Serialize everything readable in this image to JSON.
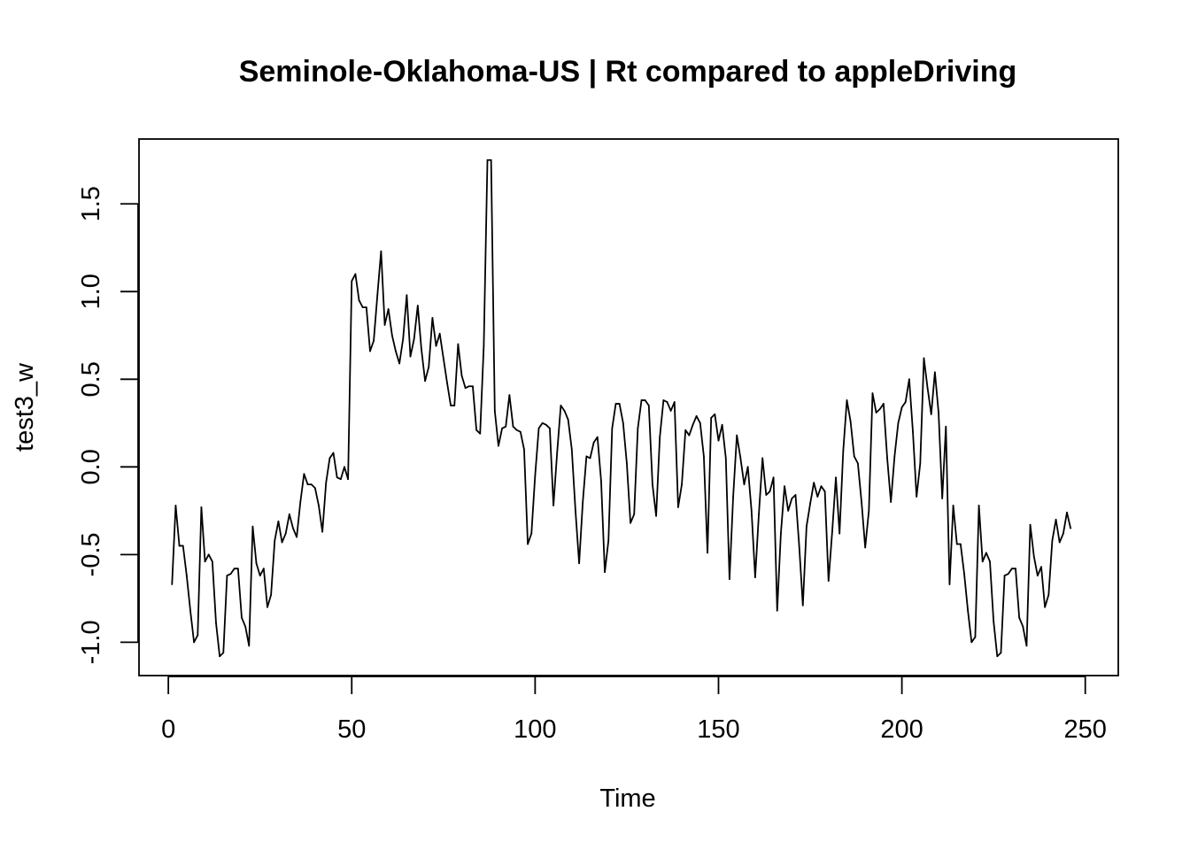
{
  "chart_data": {
    "type": "line",
    "title": "Seminole-Oklahoma-US | Rt compared to appleDriving",
    "xlabel": "Time",
    "ylabel": "test3_w",
    "xlim": [
      -8,
      259
    ],
    "ylim": [
      -1.19,
      1.87
    ],
    "x_ticks": [
      0,
      50,
      100,
      150,
      200,
      250
    ],
    "x_tick_labels": [
      "0",
      "50",
      "100",
      "150",
      "200",
      "250"
    ],
    "y_ticks": [
      -1.0,
      -0.5,
      0.0,
      0.5,
      1.0,
      1.5
    ],
    "y_tick_labels": [
      "-1.0",
      "-0.5",
      "0.0",
      "0.5",
      "1.0",
      "1.5"
    ],
    "grid": false,
    "line_color": "#000000",
    "series": [
      {
        "name": "test3_w",
        "x_start": 1,
        "values": [
          -0.67,
          -0.22,
          -0.45,
          -0.45,
          -0.62,
          -0.82,
          -1.0,
          -0.96,
          -0.23,
          -0.54,
          -0.5,
          -0.54,
          -0.89,
          -1.08,
          -1.06,
          -0.62,
          -0.61,
          -0.58,
          -0.58,
          -0.86,
          -0.91,
          -1.02,
          -0.34,
          -0.55,
          -0.62,
          -0.58,
          -0.8,
          -0.73,
          -0.42,
          -0.31,
          -0.43,
          -0.38,
          -0.27,
          -0.35,
          -0.4,
          -0.2,
          -0.04,
          -0.1,
          -0.1,
          -0.12,
          -0.22,
          -0.37,
          -0.09,
          0.05,
          0.08,
          -0.06,
          -0.07,
          0.0,
          -0.07,
          1.06,
          1.1,
          0.95,
          0.91,
          0.91,
          0.66,
          0.72,
          0.98,
          1.23,
          0.81,
          0.9,
          0.75,
          0.66,
          0.59,
          0.73,
          0.98,
          0.63,
          0.73,
          0.92,
          0.67,
          0.49,
          0.57,
          0.85,
          0.69,
          0.76,
          0.62,
          0.48,
          0.35,
          0.35,
          0.7,
          0.52,
          0.45,
          0.46,
          0.46,
          0.21,
          0.19,
          0.69,
          1.75,
          1.75,
          0.32,
          0.12,
          0.22,
          0.23,
          0.41,
          0.23,
          0.21,
          0.2,
          0.1,
          -0.44,
          -0.38,
          -0.05,
          0.22,
          0.25,
          0.24,
          0.22,
          -0.22,
          0.08,
          0.35,
          0.32,
          0.27,
          0.1,
          -0.25,
          -0.55,
          -0.2,
          0.06,
          0.05,
          0.14,
          0.17,
          -0.08,
          -0.6,
          -0.42,
          0.22,
          0.36,
          0.36,
          0.25,
          0.02,
          -0.32,
          -0.27,
          0.22,
          0.38,
          0.38,
          0.35,
          -0.1,
          -0.28,
          0.17,
          0.38,
          0.37,
          0.32,
          0.37,
          -0.23,
          -0.1,
          0.21,
          0.18,
          0.24,
          0.29,
          0.25,
          0.06,
          -0.49,
          0.28,
          0.3,
          0.15,
          0.24,
          0.05,
          -0.64,
          -0.17,
          0.18,
          0.05,
          -0.1,
          0.0,
          -0.25,
          -0.63,
          -0.27,
          0.05,
          -0.16,
          -0.14,
          -0.06,
          -0.82,
          -0.38,
          -0.11,
          -0.25,
          -0.18,
          -0.16,
          -0.45,
          -0.79,
          -0.34,
          -0.21,
          -0.09,
          -0.17,
          -0.11,
          -0.14,
          -0.65,
          -0.37,
          -0.06,
          -0.38,
          0.09,
          0.38,
          0.26,
          0.06,
          0.02,
          -0.2,
          -0.46,
          -0.25,
          0.42,
          0.31,
          0.33,
          0.36,
          0.05,
          -0.2,
          0.06,
          0.25,
          0.34,
          0.37,
          0.5,
          0.2,
          -0.17,
          0.02,
          0.62,
          0.45,
          0.3,
          0.54,
          0.31,
          -0.18,
          0.23,
          -0.67,
          -0.22,
          -0.44,
          -0.44,
          -0.61,
          -0.82,
          -1.0,
          -0.97,
          -0.22,
          -0.54,
          -0.49,
          -0.54,
          -0.88,
          -1.08,
          -1.06,
          -0.62,
          -0.61,
          -0.58,
          -0.58,
          -0.86,
          -0.91,
          -1.02,
          -0.33,
          -0.51,
          -0.62,
          -0.57,
          -0.8,
          -0.73,
          -0.42,
          -0.3,
          -0.43,
          -0.38,
          -0.26,
          -0.35
        ]
      }
    ]
  }
}
